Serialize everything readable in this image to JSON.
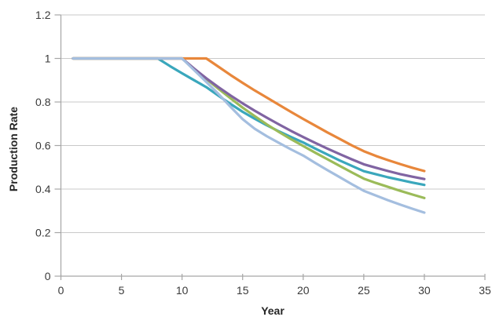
{
  "chart_data": {
    "type": "line",
    "title": "",
    "xlabel": "Year",
    "ylabel": "Production Rate",
    "xlim": [
      0,
      35
    ],
    "ylim": [
      0,
      1.2
    ],
    "xticks": [
      0,
      5,
      10,
      15,
      20,
      25,
      30,
      35
    ],
    "yticks": [
      {
        "v": 0,
        "label": "0"
      },
      {
        "v": 0.2,
        "label": "0.2"
      },
      {
        "v": 0.4,
        "label": "0.4"
      },
      {
        "v": 0.6,
        "label": "0.6"
      },
      {
        "v": 0.8,
        "label": "0.8"
      },
      {
        "v": 1,
        "label": "1"
      },
      {
        "v": 1.2,
        "label": "1.2"
      }
    ],
    "grid": "horizontal-only",
    "legend": "none",
    "colors": {
      "gridline": "#c9c9c9",
      "axis": "#a6a6a6",
      "tick_text": "#3a3a3a",
      "axis_title_text": "#262626"
    },
    "series": [
      {
        "name": "series-1-teal",
        "color": "#3AA7BC",
        "decline_start_year": 8,
        "points": [
          [
            1,
            1
          ],
          [
            8,
            1
          ],
          [
            9,
            0.965
          ],
          [
            10,
            0.932
          ],
          [
            11,
            0.9
          ],
          [
            12,
            0.868
          ],
          [
            13,
            0.829
          ],
          [
            14,
            0.791
          ],
          [
            15,
            0.755
          ],
          [
            16,
            0.723
          ],
          [
            17,
            0.693
          ],
          [
            18,
            0.665
          ],
          [
            19,
            0.639
          ],
          [
            20,
            0.614
          ],
          [
            21,
            0.586
          ],
          [
            22,
            0.559
          ],
          [
            23,
            0.532
          ],
          [
            24,
            0.507
          ],
          [
            25,
            0.482
          ],
          [
            26,
            0.468
          ],
          [
            27,
            0.454
          ],
          [
            28,
            0.442
          ],
          [
            29,
            0.43
          ],
          [
            30,
            0.419
          ]
        ]
      },
      {
        "name": "series-2-green",
        "color": "#9BBB59",
        "decline_start_year": 10,
        "points": [
          [
            1,
            1
          ],
          [
            10,
            1
          ],
          [
            11,
            0.952
          ],
          [
            12,
            0.906
          ],
          [
            13,
            0.861
          ],
          [
            14,
            0.817
          ],
          [
            15,
            0.774
          ],
          [
            16,
            0.735
          ],
          [
            17,
            0.697
          ],
          [
            18,
            0.662
          ],
          [
            19,
            0.629
          ],
          [
            20,
            0.598
          ],
          [
            21,
            0.567
          ],
          [
            22,
            0.537
          ],
          [
            23,
            0.507
          ],
          [
            24,
            0.477
          ],
          [
            25,
            0.448
          ],
          [
            26,
            0.428
          ],
          [
            27,
            0.41
          ],
          [
            28,
            0.392
          ],
          [
            29,
            0.375
          ],
          [
            30,
            0.359
          ]
        ]
      },
      {
        "name": "series-3-purple",
        "color": "#8064A2",
        "decline_start_year": 10,
        "points": [
          [
            1,
            1
          ],
          [
            10,
            1
          ],
          [
            11,
            0.953
          ],
          [
            12,
            0.909
          ],
          [
            13,
            0.868
          ],
          [
            14,
            0.83
          ],
          [
            15,
            0.794
          ],
          [
            16,
            0.76
          ],
          [
            17,
            0.728
          ],
          [
            18,
            0.697
          ],
          [
            19,
            0.667
          ],
          [
            20,
            0.639
          ],
          [
            21,
            0.612
          ],
          [
            22,
            0.586
          ],
          [
            23,
            0.561
          ],
          [
            24,
            0.537
          ],
          [
            25,
            0.514
          ],
          [
            26,
            0.498
          ],
          [
            27,
            0.483
          ],
          [
            28,
            0.469
          ],
          [
            29,
            0.457
          ],
          [
            30,
            0.446
          ]
        ]
      },
      {
        "name": "series-4-orange",
        "color": "#E8873B",
        "decline_start_year": 12,
        "points": [
          [
            1,
            1
          ],
          [
            8,
            1
          ],
          [
            10,
            1
          ],
          [
            12,
            1
          ],
          [
            13,
            0.962
          ],
          [
            14,
            0.924
          ],
          [
            15,
            0.888
          ],
          [
            16,
            0.853
          ],
          [
            17,
            0.82
          ],
          [
            18,
            0.787
          ],
          [
            19,
            0.754
          ],
          [
            20,
            0.722
          ],
          [
            21,
            0.691
          ],
          [
            22,
            0.66
          ],
          [
            23,
            0.631
          ],
          [
            24,
            0.601
          ],
          [
            25,
            0.574
          ],
          [
            26,
            0.552
          ],
          [
            27,
            0.533
          ],
          [
            28,
            0.515
          ],
          [
            29,
            0.498
          ],
          [
            30,
            0.483
          ]
        ]
      },
      {
        "name": "series-5-lightblue",
        "color": "#A4BEDF",
        "decline_start_year": 10,
        "points": [
          [
            1,
            1
          ],
          [
            10,
            1
          ],
          [
            11,
            0.946
          ],
          [
            12,
            0.892
          ],
          [
            13,
            0.837
          ],
          [
            14,
            0.778
          ],
          [
            15,
            0.721
          ],
          [
            16,
            0.677
          ],
          [
            17,
            0.643
          ],
          [
            18,
            0.612
          ],
          [
            19,
            0.582
          ],
          [
            20,
            0.554
          ],
          [
            21,
            0.52
          ],
          [
            22,
            0.487
          ],
          [
            23,
            0.455
          ],
          [
            24,
            0.423
          ],
          [
            25,
            0.392
          ],
          [
            26,
            0.37
          ],
          [
            27,
            0.349
          ],
          [
            28,
            0.329
          ],
          [
            29,
            0.31
          ],
          [
            30,
            0.292
          ]
        ]
      }
    ]
  }
}
